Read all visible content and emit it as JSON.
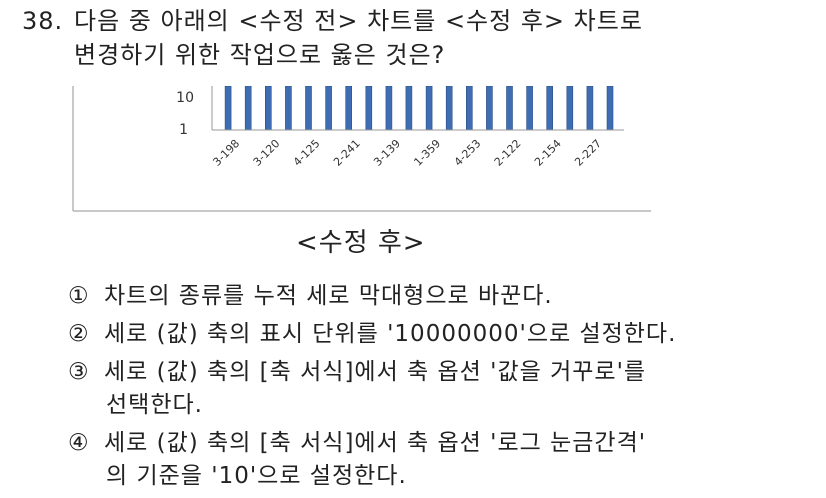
{
  "question": {
    "number": "38.",
    "line1": "다음 중 아래의 <수정 전> 차트를 <수정 후> 차트로",
    "line2": "변경하기 위한 작업으로 옳은 것은?"
  },
  "chart_caption": "<수정 후>",
  "chart_data": {
    "type": "bar",
    "categories": [
      "3-198",
      "3-120",
      "4-125",
      "2-241",
      "3-139",
      "1-359",
      "4-253",
      "2-122",
      "2-154",
      "2-227"
    ],
    "y_ticks": [
      "10",
      "1"
    ],
    "bar_count": 20,
    "values_note": "",
    "colors": {
      "bar": "#3f6db3",
      "bar_edge": "#2c4f86",
      "axis": "#999999",
      "frame": "#b5b5b5"
    }
  },
  "options": [
    {
      "mark": "①",
      "line1": "차트의 종류를 누적 세로 막대형으로 바꾼다.",
      "line2": ""
    },
    {
      "mark": "②",
      "line1": "세로 (값) 축의 표시 단위를 '10000000'으로 설정한다.",
      "line2": ""
    },
    {
      "mark": "③",
      "line1": "세로 (값) 축의 [축 서식]에서 축 옵션 '값을 거꾸로'를",
      "line2": "선택한다."
    },
    {
      "mark": "④",
      "line1": "세로 (값) 축의 [축 서식]에서 축 옵션 '로그 눈금간격'",
      "line2": "의 기준을 '10'으로 설정한다."
    }
  ]
}
